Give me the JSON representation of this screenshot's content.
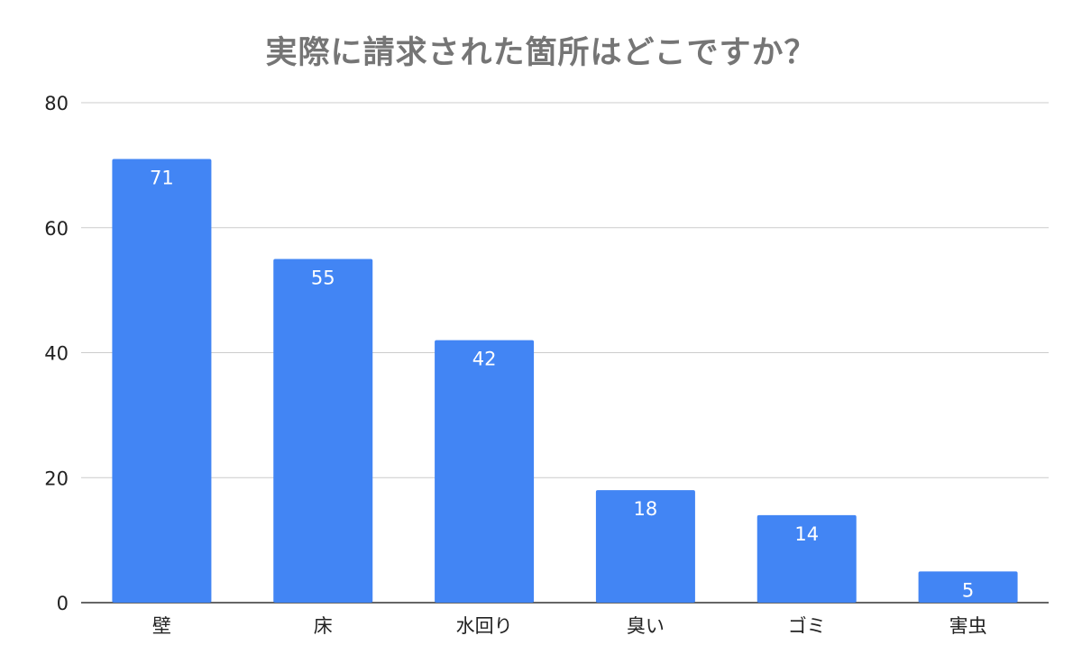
{
  "chart_data": {
    "type": "bar",
    "title": "実際に請求された箇所はどこですか？",
    "xlabel": "",
    "ylabel": "",
    "categories": [
      "壁",
      "床",
      "水回り",
      "臭い",
      "ゴミ",
      "害虫"
    ],
    "values": [
      71,
      55,
      42,
      18,
      14,
      5
    ],
    "ylim": [
      0,
      80
    ],
    "yticks": [
      0,
      20,
      40,
      60,
      80
    ],
    "grid": true,
    "legend": "none",
    "bar_color": "#4285f4",
    "data_label_color": "#ffffff",
    "title_color": "#757575",
    "grid_color": "#cccccc",
    "axis_color": "#333333",
    "tick_label_color": "#222222"
  }
}
